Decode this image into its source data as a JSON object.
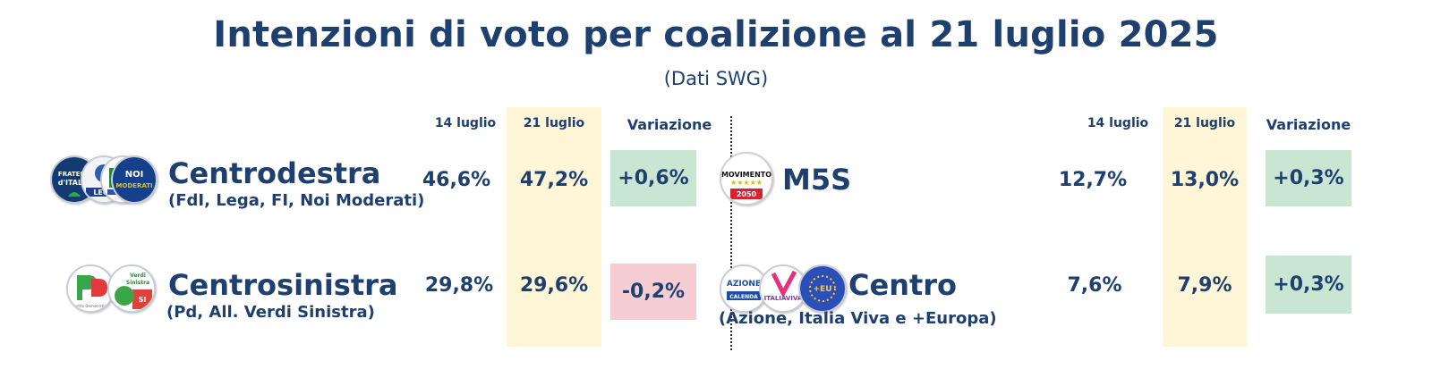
{
  "title": "Intenzioni di voto per coalizione al 21 luglio 2025",
  "subtitle": "(Dati SWG)",
  "columns": {
    "prev": "14 luglio",
    "curr": "21 luglio",
    "change": "Variazione"
  },
  "colors": {
    "text": "#1f3f6e",
    "highlight": "#fff6d8",
    "positive": "#c9e6d3",
    "negative": "#f6cdd2"
  },
  "logos": {
    "fdi": "FRATELLI D'ITALIA",
    "noi": "NOI MODERATI",
    "m5s": "MOVIMENTO",
    "m5s_year": "2050",
    "pd": "PD",
    "pd_small": "Partito Democratico",
    "avs": "Alleanza Verdi Sinistra",
    "azione": "AZIONE",
    "azione_small": "CALENDA",
    "italiaviva": "ITALIAVIVA",
    "europa": "+EUROPA"
  },
  "chart_data": {
    "type": "table",
    "title": "Intenzioni di voto per coalizione al 21 luglio 2025",
    "subtitle": "(Dati SWG)",
    "columns": [
      "14 luglio",
      "21 luglio",
      "Variazione"
    ],
    "rows": [
      {
        "name": "Centrodestra",
        "members": "(FdI, Lega, FI, Noi Moderati)",
        "prev": "46,6%",
        "curr": "47,2%",
        "change": "+0,6%",
        "prev_value": 46.6,
        "curr_value": 47.2,
        "change_value": 0.6
      },
      {
        "name": "Centrosinistra",
        "members": "(Pd, All. Verdi Sinistra)",
        "prev": "29,8%",
        "curr": "29,6%",
        "change": "-0,2%",
        "prev_value": 29.8,
        "curr_value": 29.6,
        "change_value": -0.2
      },
      {
        "name": "M5S",
        "members": "",
        "prev": "12,7%",
        "curr": "13,0%",
        "change": "+0,3%",
        "prev_value": 12.7,
        "curr_value": 13.0,
        "change_value": 0.3
      },
      {
        "name": "Centro",
        "members": "(Azione, Italia Viva e +Europa)",
        "prev": "7,6%",
        "curr": "7,9%",
        "change": "+0,3%",
        "prev_value": 7.6,
        "curr_value": 7.9,
        "change_value": 0.3
      }
    ]
  }
}
